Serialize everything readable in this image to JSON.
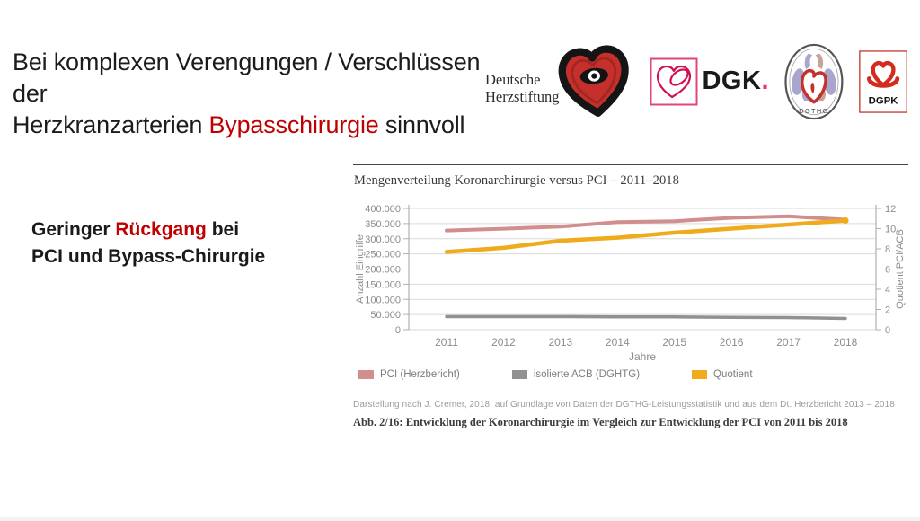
{
  "header": {
    "title_line1": "Bei komplexen Verengungen / Verschlüssen der",
    "title_line2_pre": "Herzkranzarterien ",
    "title_line2_highlight": "Bypasschirurgie",
    "title_line2_post": " sinnvoll"
  },
  "statement": {
    "line1_pre": "Geringer ",
    "line1_highlight": "Rückgang",
    "line1_post": " bei",
    "line2": "PCI und Bypass-Chirurgie"
  },
  "logos": {
    "herzstiftung": {
      "line1": "Deutsche",
      "line2": "Herzstiftung"
    },
    "dgk": {
      "label": "DGK",
      "dot": "."
    },
    "dgthg": {
      "label": "DGTHG"
    },
    "dgpk": {
      "label": "DGPK"
    }
  },
  "colors": {
    "accent_red": "#c00000",
    "pci_line": "#d08f8c",
    "acb_line": "#919191",
    "quotient_line": "#f0ab1c",
    "grid": "#d9d9d9",
    "axis": "#b0b0b0",
    "tick_text": "#8c8c8c"
  },
  "chart_data": {
    "type": "line",
    "title": "Mengenverteilung Koronarchirurgie versus PCI – 2011–2018",
    "x": [
      2011,
      2012,
      2013,
      2014,
      2015,
      2016,
      2017,
      2018
    ],
    "xlabel": "Jahre",
    "ylabel_left": "Anzahl Eingriffe",
    "ylabel_right": "Quotient PCI/ACB",
    "ylim_left": [
      0,
      400000
    ],
    "ytick_step_left": 50000,
    "ylim_right": [
      0,
      12
    ],
    "ytick_step_right": 2,
    "grid": true,
    "legend_position": "bottom",
    "series": [
      {
        "name": "PCI (Herzbericht)",
        "axis": "left",
        "color": "#d08f8c",
        "values": [
          327000,
          333000,
          340000,
          355000,
          358000,
          369000,
          374000,
          363000
        ]
      },
      {
        "name": "isolierte ACB (DGHTG)",
        "axis": "left",
        "color": "#919191",
        "values": [
          43000,
          43000,
          43000,
          42500,
          42000,
          41000,
          40000,
          37000
        ]
      },
      {
        "name": "Quotient",
        "axis": "right",
        "color": "#f0ab1c",
        "values": [
          7.7,
          8.1,
          8.8,
          9.1,
          9.6,
          10.0,
          10.4,
          10.8
        ]
      }
    ]
  },
  "captions": {
    "source": "Darstellung nach J. Cremer, 2018, auf Grundlage von Daten der DGTHG-Leistungsstatistik und aus dem Dt. Herzbericht 2013 – 2018",
    "figure": "Abb. 2/16: Entwicklung der Koronarchirurgie im Vergleich zur Entwicklung der PCI von 2011 bis 2018"
  }
}
